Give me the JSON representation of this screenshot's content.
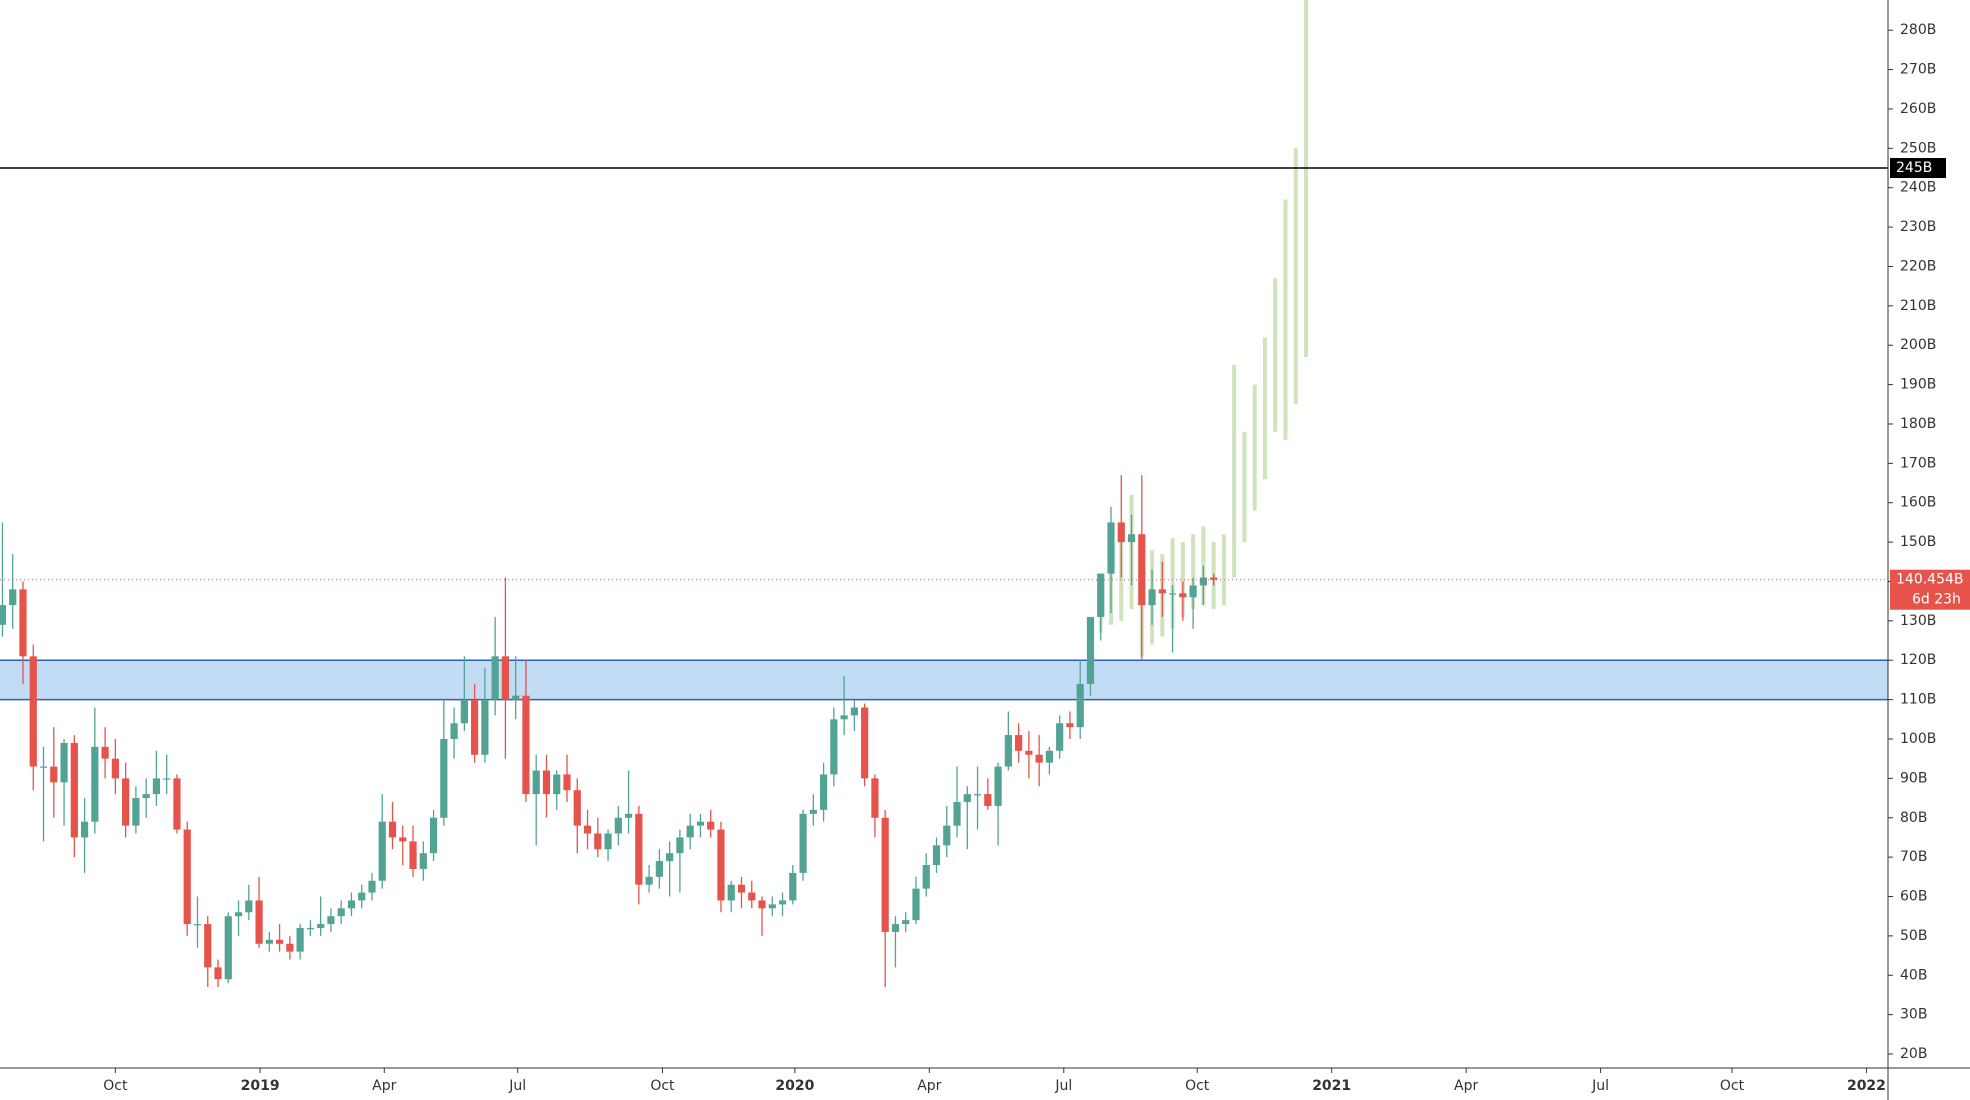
{
  "chart_data": {
    "type": "candlestick",
    "up_color": "#53a394",
    "down_color": "#e5534b",
    "projection_color": "#cfe3be",
    "xlim": [
      -0.24,
      183.7
    ],
    "ylim": [
      16.45,
      287.67
    ],
    "xticks": [
      {
        "value": 11.0,
        "label": "Oct"
      },
      {
        "value": 25.1,
        "label": "2019"
      },
      {
        "value": 37.2,
        "label": "Apr"
      },
      {
        "value": 50.2,
        "label": "Jul"
      },
      {
        "value": 64.3,
        "label": "Oct"
      },
      {
        "value": 77.2,
        "label": "2020"
      },
      {
        "value": 90.3,
        "label": "Apr"
      },
      {
        "value": 103.4,
        "label": "Jul"
      },
      {
        "value": 116.4,
        "label": "Oct"
      },
      {
        "value": 129.5,
        "label": "2021"
      },
      {
        "value": 142.6,
        "label": "Apr"
      },
      {
        "value": 155.7,
        "label": "Jul"
      },
      {
        "value": 168.5,
        "label": "Oct"
      },
      {
        "value": 181.6,
        "label": "2022"
      }
    ],
    "yticks": [
      {
        "value": 20,
        "label": "20B"
      },
      {
        "value": 30,
        "label": "30B"
      },
      {
        "value": 40,
        "label": "40B"
      },
      {
        "value": 50,
        "label": "50B"
      },
      {
        "value": 60,
        "label": "60B"
      },
      {
        "value": 70,
        "label": "70B"
      },
      {
        "value": 80,
        "label": "80B"
      },
      {
        "value": 90,
        "label": "90B"
      },
      {
        "value": 100,
        "label": "100B"
      },
      {
        "value": 110,
        "label": "110B"
      },
      {
        "value": 120,
        "label": "120B"
      },
      {
        "value": 130,
        "label": "130B"
      },
      {
        "value": 140,
        "label": "140B"
      },
      {
        "value": 150,
        "label": "150B"
      },
      {
        "value": 160,
        "label": "160B"
      },
      {
        "value": 170,
        "label": "170B"
      },
      {
        "value": 180,
        "label": "180B"
      },
      {
        "value": 190,
        "label": "190B"
      },
      {
        "value": 200,
        "label": "200B"
      },
      {
        "value": 210,
        "label": "210B"
      },
      {
        "value": 220,
        "label": "220B"
      },
      {
        "value": 230,
        "label": "230B"
      },
      {
        "value": 240,
        "label": "240B"
      },
      {
        "value": 250,
        "label": "250B"
      },
      {
        "value": 260,
        "label": "260B"
      },
      {
        "value": 270,
        "label": "270B"
      },
      {
        "value": 280,
        "label": "280B"
      }
    ],
    "zone": {
      "low": 110,
      "high": 120,
      "color": "#c3dcf6",
      "edge_color": "#2c5fbf"
    },
    "hline": {
      "value": 245,
      "label": "245B",
      "color": "#000000"
    },
    "last_price": {
      "value": 140.454,
      "label": "140.454B",
      "color": "#e5534b"
    },
    "countdown": "6d 23h",
    "ohlc": [
      [
        129,
        155,
        126,
        134
      ],
      [
        134,
        147,
        128,
        138
      ],
      [
        138,
        140,
        114,
        121
      ],
      [
        121,
        124,
        87,
        93
      ],
      [
        93,
        98,
        74,
        93
      ],
      [
        93,
        103,
        80,
        89
      ],
      [
        89,
        100,
        78,
        99
      ],
      [
        99,
        101,
        70,
        75
      ],
      [
        75,
        85,
        66,
        79
      ],
      [
        79,
        108,
        76,
        98
      ],
      [
        98,
        103,
        90,
        95
      ],
      [
        95,
        100,
        86,
        90
      ],
      [
        90,
        94,
        75,
        78
      ],
      [
        78,
        88,
        76,
        85
      ],
      [
        85,
        90,
        80,
        86
      ],
      [
        86,
        97,
        83,
        90
      ],
      [
        90,
        96,
        86,
        90
      ],
      [
        90,
        91,
        76,
        77
      ],
      [
        77,
        79,
        50,
        53
      ],
      [
        53,
        60,
        47,
        53
      ],
      [
        53,
        55,
        37,
        42
      ],
      [
        42,
        44,
        37,
        39
      ],
      [
        39,
        56,
        38,
        55
      ],
      [
        55,
        59,
        50,
        56
      ],
      [
        56,
        63,
        54,
        59
      ],
      [
        59,
        65,
        47,
        48
      ],
      [
        48,
        51,
        46,
        49
      ],
      [
        49,
        53,
        46,
        48
      ],
      [
        48,
        50,
        44,
        46
      ],
      [
        46,
        53,
        44,
        52
      ],
      [
        52,
        54,
        50,
        52
      ],
      [
        52,
        60,
        50,
        53
      ],
      [
        53,
        57,
        51,
        55
      ],
      [
        55,
        59,
        53,
        57
      ],
      [
        57,
        61,
        55,
        59
      ],
      [
        59,
        63,
        57,
        61
      ],
      [
        61,
        66,
        59,
        64
      ],
      [
        64,
        86,
        62,
        79
      ],
      [
        79,
        84,
        72,
        75
      ],
      [
        75,
        78,
        68,
        74
      ],
      [
        74,
        78,
        65,
        67
      ],
      [
        67,
        74,
        64,
        71
      ],
      [
        71,
        82,
        69,
        80
      ],
      [
        80,
        110,
        78,
        100
      ],
      [
        100,
        108,
        95,
        104
      ],
      [
        104,
        121,
        102,
        110
      ],
      [
        110,
        114,
        94,
        96
      ],
      [
        96,
        118,
        94,
        110
      ],
      [
        110,
        131,
        106,
        121
      ],
      [
        121,
        141,
        95,
        110
      ],
      [
        110,
        121,
        105,
        111
      ],
      [
        111,
        120,
        84,
        86
      ],
      [
        86,
        96,
        73,
        92
      ],
      [
        92,
        96,
        80,
        86
      ],
      [
        86,
        92,
        82,
        91
      ],
      [
        91,
        96,
        84,
        87
      ],
      [
        87,
        90,
        71,
        78
      ],
      [
        78,
        82,
        72,
        76
      ],
      [
        76,
        80,
        70,
        72
      ],
      [
        72,
        77,
        69,
        76
      ],
      [
        76,
        83,
        73,
        80
      ],
      [
        80,
        92,
        76,
        81
      ],
      [
        81,
        83,
        58,
        63
      ],
      [
        63,
        68,
        61,
        65
      ],
      [
        65,
        72,
        62,
        69
      ],
      [
        69,
        74,
        60,
        71
      ],
      [
        71,
        77,
        61,
        75
      ],
      [
        75,
        81,
        72,
        78
      ],
      [
        78,
        81,
        75,
        79
      ],
      [
        79,
        82,
        75,
        77
      ],
      [
        77,
        79,
        56,
        59
      ],
      [
        59,
        64,
        56,
        63
      ],
      [
        63,
        65,
        57,
        61
      ],
      [
        61,
        64,
        57,
        59
      ],
      [
        59,
        60,
        50,
        57
      ],
      [
        57,
        60,
        55,
        58
      ],
      [
        58,
        61,
        55,
        59
      ],
      [
        59,
        68,
        58,
        66
      ],
      [
        66,
        82,
        64,
        81
      ],
      [
        81,
        86,
        78,
        82
      ],
      [
        82,
        94,
        79,
        91
      ],
      [
        91,
        108,
        88,
        105
      ],
      [
        105,
        116,
        101,
        106
      ],
      [
        106,
        110,
        102,
        108
      ],
      [
        108,
        109,
        88,
        90
      ],
      [
        90,
        91,
        75,
        80
      ],
      [
        80,
        82,
        37,
        51
      ],
      [
        51,
        55,
        42,
        53
      ],
      [
        53,
        56,
        51,
        54
      ],
      [
        54,
        65,
        53,
        62
      ],
      [
        62,
        71,
        60,
        68
      ],
      [
        68,
        75,
        66,
        73
      ],
      [
        73,
        83,
        70,
        78
      ],
      [
        78,
        93,
        75,
        84
      ],
      [
        84,
        88,
        72,
        86
      ],
      [
        86,
        93,
        77,
        86
      ],
      [
        86,
        90,
        82,
        83
      ],
      [
        83,
        94,
        73,
        93
      ],
      [
        93,
        107,
        92,
        101
      ],
      [
        101,
        104,
        94,
        97
      ],
      [
        97,
        102,
        90,
        96
      ],
      [
        96,
        101,
        88,
        94
      ],
      [
        94,
        98,
        91,
        97
      ],
      [
        97,
        106,
        95,
        104
      ],
      [
        104,
        107,
        100,
        103
      ],
      [
        103,
        120,
        100,
        114
      ],
      [
        114,
        131,
        111,
        131
      ],
      [
        131,
        142,
        125,
        142
      ],
      [
        142,
        159,
        132,
        155
      ],
      [
        155,
        167,
        141,
        150
      ],
      [
        150,
        157,
        139,
        152
      ],
      [
        152,
        167,
        120,
        134
      ],
      [
        134,
        143,
        129,
        138
      ],
      [
        138,
        145,
        131,
        137
      ],
      [
        137,
        139,
        122,
        137
      ],
      [
        137,
        140,
        130,
        136
      ],
      [
        136,
        141,
        128,
        139
      ],
      [
        139,
        144,
        134,
        141
      ],
      [
        141,
        142,
        139,
        140.454
      ]
    ],
    "projection": [
      null,
      null,
      null,
      null,
      null,
      null,
      null,
      null,
      null,
      null,
      null,
      null,
      null,
      null,
      null,
      null,
      null,
      null,
      null,
      null,
      null,
      null,
      null,
      null,
      null,
      null,
      null,
      null,
      null,
      null,
      null,
      null,
      null,
      null,
      null,
      null,
      null,
      null,
      null,
      null,
      null,
      null,
      null,
      null,
      null,
      null,
      null,
      null,
      null,
      null,
      null,
      null,
      null,
      null,
      null,
      null,
      null,
      null,
      null,
      null,
      null,
      null,
      null,
      null,
      null,
      null,
      null,
      null,
      null,
      null,
      null,
      null,
      null,
      null,
      null,
      null,
      null,
      null,
      null,
      null,
      null,
      null,
      null,
      null,
      null,
      null,
      null,
      null,
      null,
      null,
      null,
      null,
      null,
      null,
      null,
      null,
      null,
      null,
      null,
      null,
      null,
      null,
      null,
      null,
      null,
      null,
      null,
      [
        127,
        140
      ],
      [
        129,
        146
      ],
      [
        130,
        151
      ],
      [
        133,
        162
      ],
      [
        121,
        150
      ],
      [
        124,
        148
      ],
      [
        126,
        147
      ],
      [
        128,
        151
      ],
      [
        131,
        150
      ],
      [
        133,
        152
      ],
      [
        134,
        154
      ],
      [
        133,
        150
      ],
      [
        134,
        152
      ],
      [
        141,
        195
      ],
      [
        150,
        178
      ],
      [
        158,
        190
      ],
      [
        166,
        202
      ],
      [
        178,
        217
      ],
      [
        176,
        237
      ],
      [
        185,
        250
      ],
      [
        197,
        290
      ]
    ]
  }
}
